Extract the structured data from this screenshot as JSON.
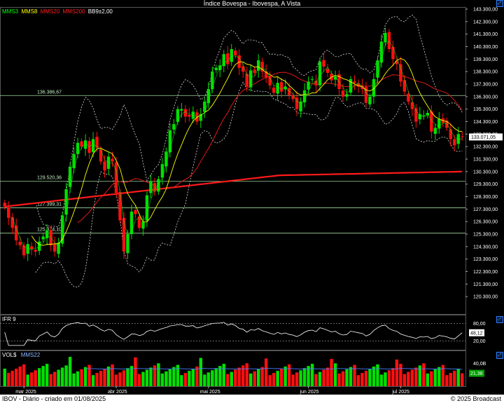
{
  "title": "Índice Bovespa - Ibovespa, A Vista",
  "legend": {
    "items": [
      {
        "label": "MMS3",
        "color": "#00ff00"
      },
      {
        "label": "MMS8",
        "color": "#ffff00"
      },
      {
        "label": "MMS20",
        "color": "#ff2020"
      },
      {
        "label": "MMS200",
        "color": "#ff2020"
      },
      {
        "label": "BB9±2,00",
        "color": "#ffffff"
      }
    ]
  },
  "ifr_label": "IFR 9",
  "vol_label": "VOL$",
  "vol_ma_label": "MMS22",
  "footer": {
    "left": "IBOV - Diário - criado em 01/08/2025",
    "right": "© 2025 Broadcast"
  },
  "colors": {
    "up": "#00e000",
    "down": "#ff1010",
    "background": "#000000",
    "hline": "#a0d8a0"
  },
  "chart_data": [
    {
      "type": "candlestick",
      "title": "Índice Bovespa - Ibovespa, A Vista",
      "ylim": [
        119300,
        143300
      ],
      "y_ticks": [
        "143.300,00",
        "142.300,00",
        "141.300,00",
        "140.300,00",
        "139.300,00",
        "138.300,00",
        "137.300,00",
        "136.300,00",
        "135.300,00",
        "134.300,00",
        "133.300,00",
        "132.300,00",
        "131.300,00",
        "130.300,00",
        "129.300,00",
        "128.300,00",
        "127.300,00",
        "126.300,00",
        "125.300,00",
        "124.300,00",
        "123.300,00",
        "122.300,00",
        "121.300,00",
        "120.300,00"
      ],
      "y_tick_values": [
        143300,
        142300,
        141300,
        140300,
        139300,
        138300,
        137300,
        136300,
        135300,
        134300,
        133300,
        132300,
        131300,
        130300,
        129300,
        128300,
        127300,
        126300,
        125300,
        124300,
        123300,
        122300,
        121300,
        120300
      ],
      "x_labels": [
        "mar 2025",
        "abr 2025",
        "mai 2025",
        "jun 2025",
        "jul 2025"
      ],
      "x_label_index": [
        5,
        29,
        53,
        79,
        103
      ],
      "last_value_label": "133.071,05",
      "last_value": 133071,
      "hlines": [
        {
          "label": "136.386,67",
          "value": 136387
        },
        {
          "label": "129.520,36",
          "value": 129520
        },
        {
          "label": "127.399,31",
          "value": 127399
        },
        {
          "label": "125.374,10",
          "value": 125374
        }
      ],
      "closes": [
        127500,
        126600,
        125800,
        124800,
        124400,
        123600,
        124500,
        124100,
        123900,
        124700,
        125100,
        125600,
        124400,
        123900,
        124600,
        126800,
        128900,
        130700,
        131700,
        132600,
        132300,
        132800,
        131800,
        132900,
        132200,
        131100,
        130400,
        131500,
        131100,
        128600,
        126400,
        123900,
        125300,
        127100,
        126900,
        125800,
        126300,
        128400,
        129500,
        128700,
        129700,
        130900,
        131900,
        133600,
        134100,
        135300,
        135300,
        134700,
        134700,
        135100,
        134300,
        134900,
        135900,
        136900,
        138300,
        138600,
        138800,
        139700,
        138900,
        140100,
        139600,
        138600,
        138300,
        137100,
        138400,
        138200,
        139200,
        138300,
        137800,
        137200,
        136600,
        137400,
        136700,
        137100,
        136400,
        136100,
        135300,
        135900,
        136800,
        137500,
        137700,
        137200,
        139100,
        138700,
        138200,
        137600,
        137900,
        136900,
        136300,
        136500,
        137700,
        137400,
        137100,
        136900,
        135800,
        136300,
        137700,
        139200,
        140700,
        141400,
        140100,
        139300,
        138900,
        137500,
        136700,
        135900,
        135300,
        134300,
        134900,
        134800,
        135000,
        133500,
        133800,
        134500,
        134200,
        133800,
        132900,
        132400,
        133300,
        133100
      ],
      "sma200": {
        "start": 127500,
        "mid": 130000,
        "end": 130300
      },
      "ifr9": {
        "ylim": [
          0,
          100
        ],
        "levels": [
          80,
          20
        ],
        "level_labels": [
          "80,00",
          "20,00"
        ],
        "last_label": "48,12",
        "last": 48.12
      },
      "volume": {
        "ylim": [
          0,
          60
        ],
        "level_labels": [
          "40,0B"
        ],
        "levels": [
          40
        ],
        "last_label": "21,38",
        "last": 21.38
      }
    }
  ]
}
